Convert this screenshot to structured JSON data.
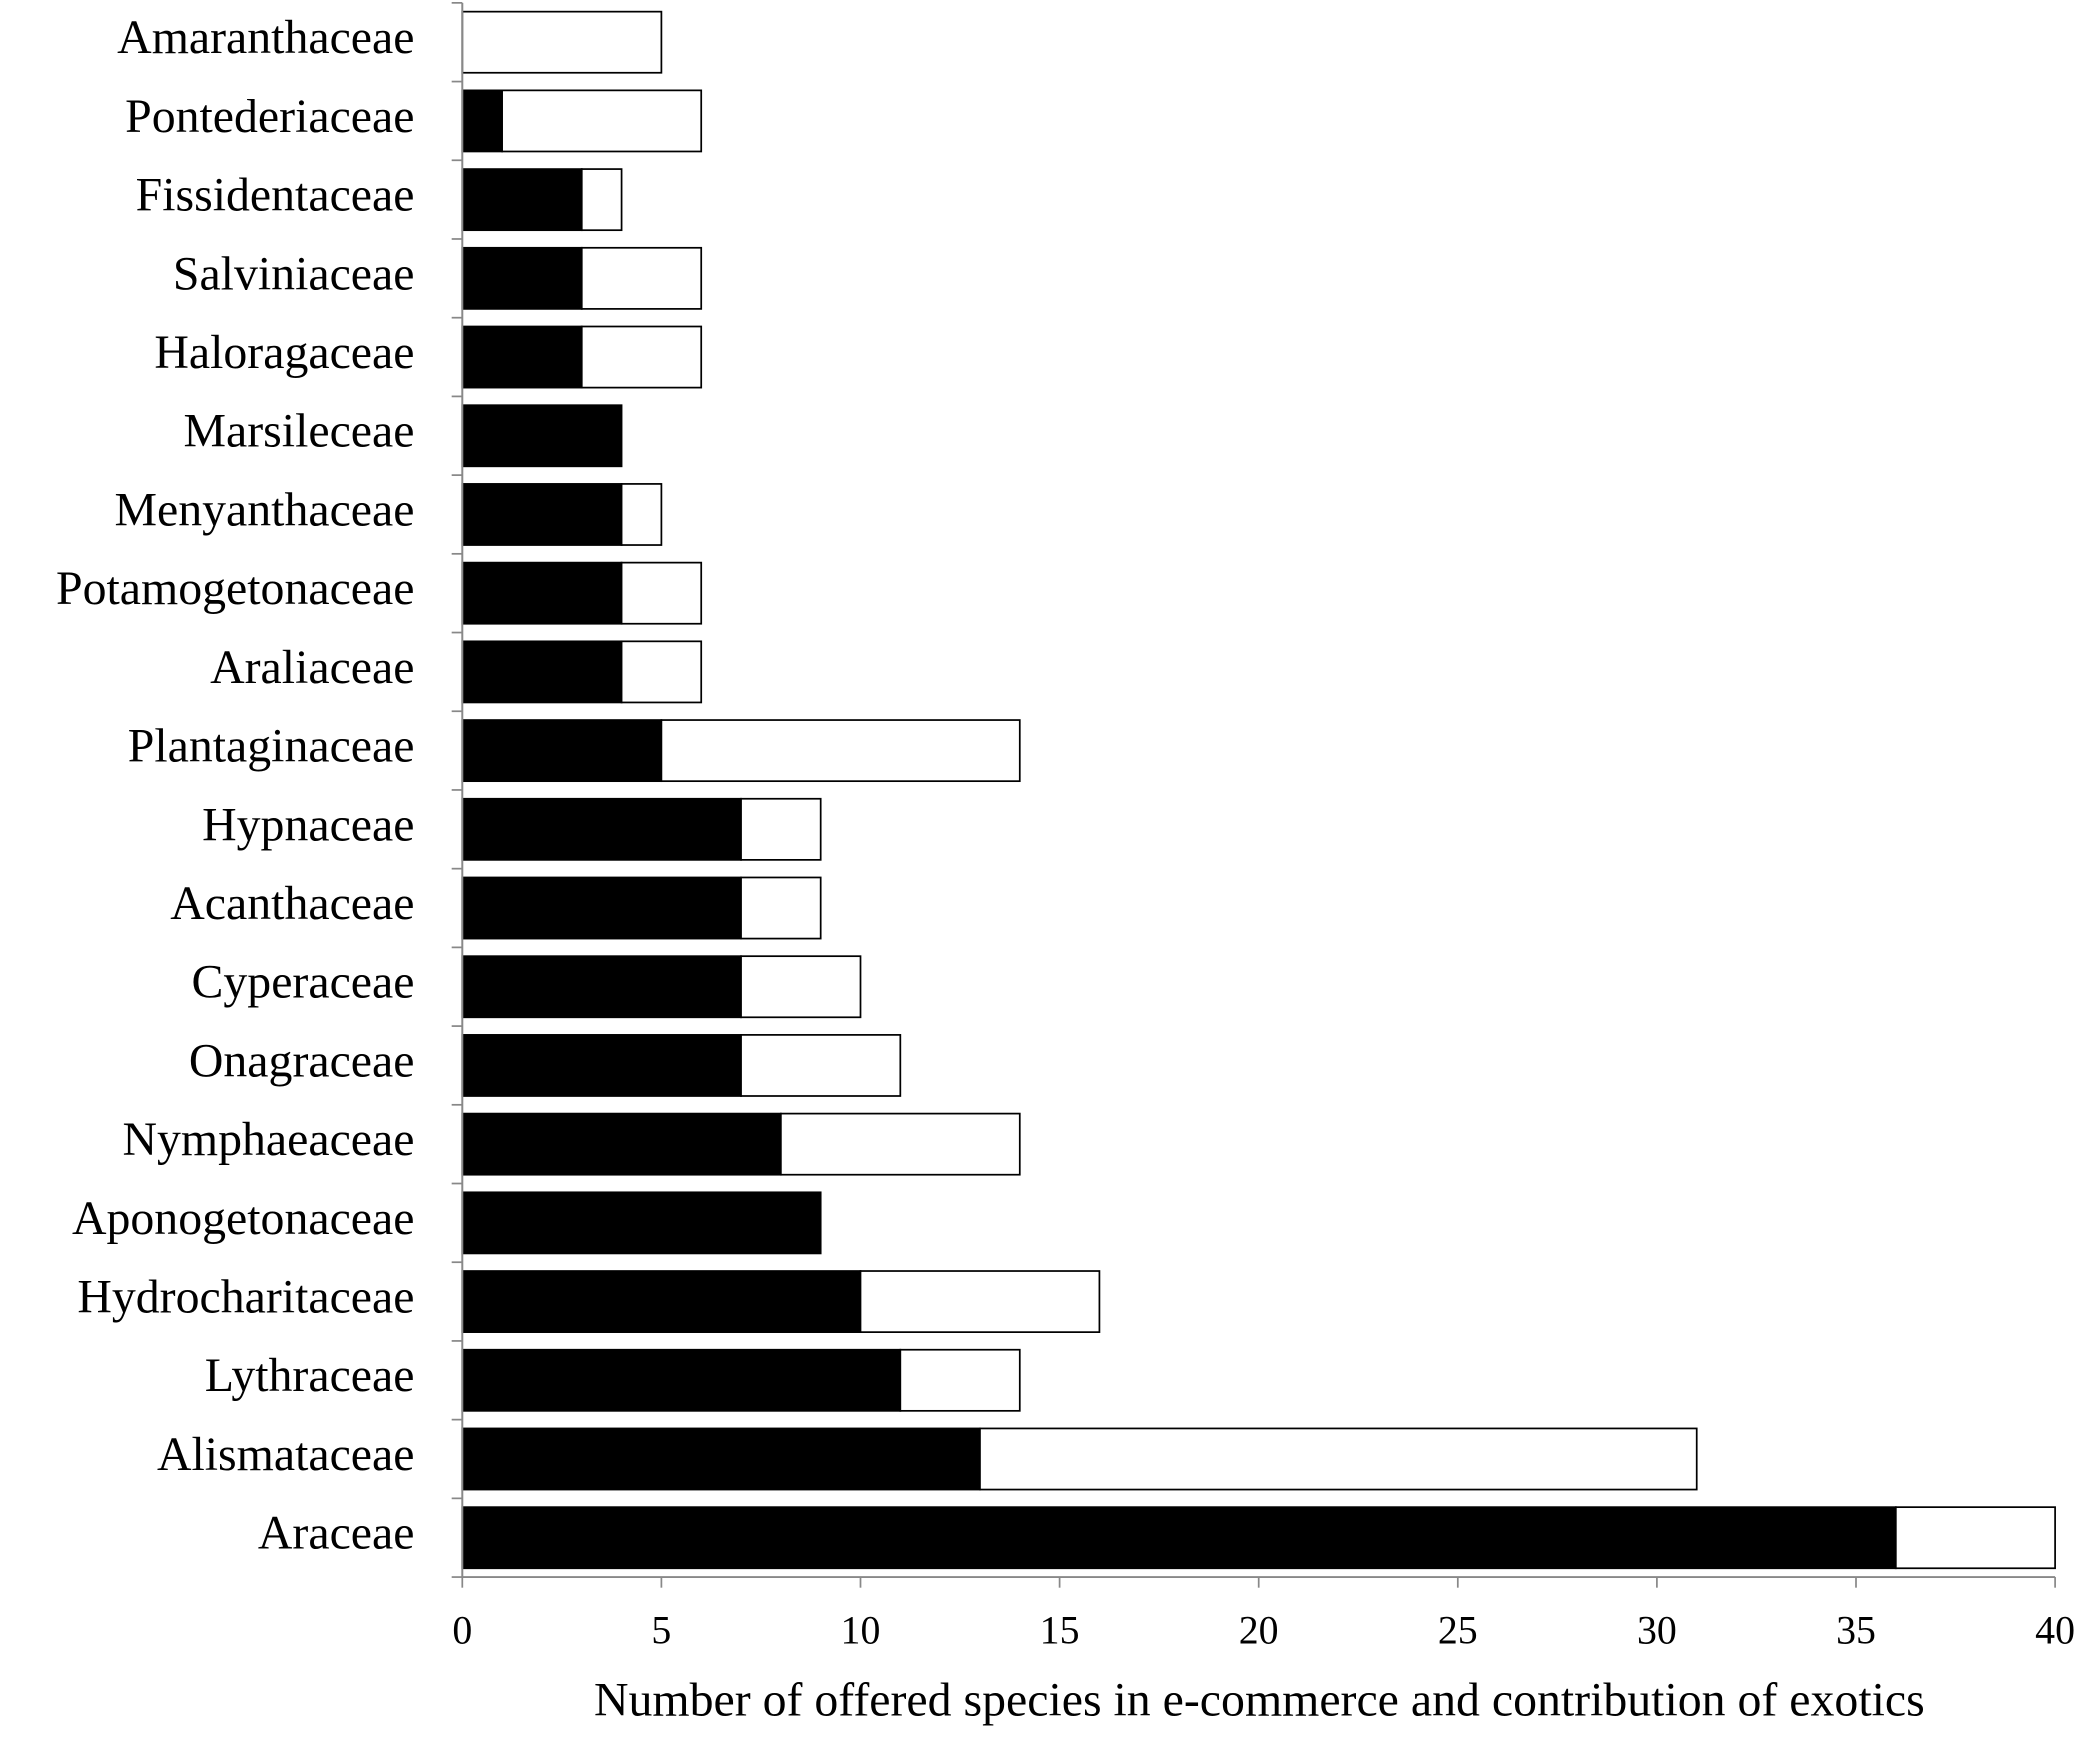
{
  "chart_data": {
    "type": "stacked-barh",
    "xlabel": "Number of  offered species in e-commerce and contribution of exotics",
    "categories": [
      "Amaranthaceae",
      "Pontederiaceae",
      "Fissidentaceae",
      "Salviniaceae",
      "Haloragaceae",
      "Marsileceae",
      "Menyanthaceae",
      "Potamogetonaceae",
      "Araliaceae",
      "Plantaginaceae",
      "Hypnaceae",
      "Acanthaceae",
      "Cyperaceae",
      "Onagraceae",
      "Nymphaeaceae",
      "Aponogetonaceae",
      "Hydrocharitaceae",
      "Lythraceae",
      "Alismataceae",
      "Araceae"
    ],
    "series": [
      {
        "color": "#000000",
        "values": [
          0,
          1,
          3,
          3,
          3,
          4,
          4,
          4,
          4,
          5,
          7,
          7,
          7,
          7,
          8,
          9,
          10,
          11,
          13,
          36
        ]
      },
      {
        "color": "#ffffff",
        "values": [
          5,
          5,
          1,
          3,
          3,
          0,
          1,
          2,
          2,
          9,
          2,
          2,
          3,
          4,
          6,
          0,
          6,
          3,
          18,
          4
        ]
      }
    ],
    "xlim": [
      0,
      40
    ],
    "xticks": [
      0,
      5,
      10,
      15,
      20,
      25,
      30,
      35,
      40
    ]
  }
}
